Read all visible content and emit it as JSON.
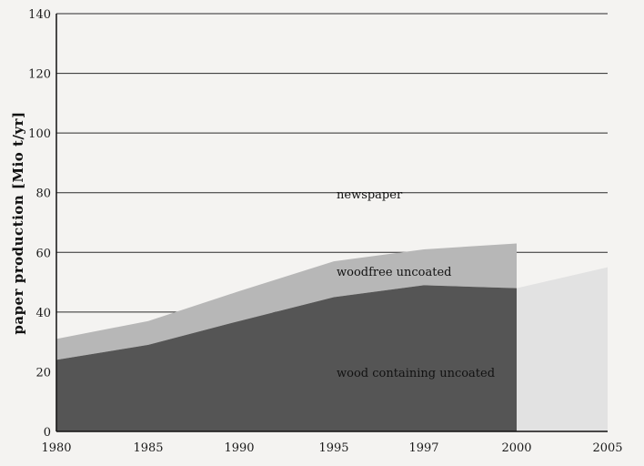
{
  "chart_data": {
    "type": "area",
    "stacked": true,
    "title": "",
    "xlabel": "",
    "ylabel": "paper production [Mio t/yr]",
    "ylim": [
      0,
      140
    ],
    "yticks": [
      0,
      20,
      40,
      60,
      80,
      100,
      120,
      140
    ],
    "x_categories": [
      "1980",
      "1985",
      "1990",
      "1995",
      "1997",
      "2000",
      "2005"
    ],
    "grid": true,
    "series": [
      {
        "name": "wood containing uncoated",
        "x": [
          "1980",
          "1985",
          "1990",
          "1995",
          "1997",
          "2000"
        ],
        "values": [
          24,
          29,
          37,
          45,
          49,
          48
        ]
      },
      {
        "name": "woodfree uncoated",
        "x": [
          "1980",
          "1985",
          "1990",
          "1995",
          "1997",
          "2000"
        ],
        "values": [
          7,
          8,
          10,
          12,
          12,
          15
        ]
      }
    ],
    "projection": {
      "x": [
        "2000",
        "2005"
      ],
      "values": [
        48,
        55
      ]
    },
    "annotations": [
      "newspaper",
      "woodfree uncoated",
      "wood containing uncoated"
    ],
    "colors": {
      "background": "#f4f3f1",
      "wood_containing": "#555555",
      "woodfree": "#b7b7b7",
      "projection": "#e2e2e2",
      "grid": "#2a2a2a",
      "axis": "#111111"
    }
  }
}
